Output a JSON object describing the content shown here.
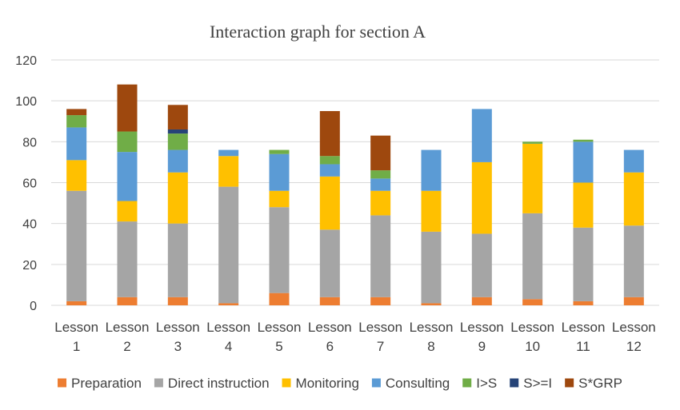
{
  "chart_data": {
    "type": "bar",
    "stacked": true,
    "title": "Interaction graph for section A",
    "xlabel": "",
    "ylabel": "",
    "ylim": [
      0,
      120
    ],
    "yticks": [
      0,
      20,
      40,
      60,
      80,
      100,
      120
    ],
    "grid": true,
    "legend_position": "bottom",
    "categories": [
      [
        "Lesson",
        "1"
      ],
      [
        "Lesson",
        "2"
      ],
      [
        "Lesson",
        "3"
      ],
      [
        "Lesson",
        "4"
      ],
      [
        "Lesson",
        "5"
      ],
      [
        "Lesson",
        "6"
      ],
      [
        "Lesson",
        "7"
      ],
      [
        "Lesson",
        "8"
      ],
      [
        "Lesson",
        "9"
      ],
      [
        "Lesson",
        "10"
      ],
      [
        "Lesson",
        "11"
      ],
      [
        "Lesson",
        "12"
      ]
    ],
    "series": [
      {
        "name": "Preparation",
        "color": "#ED7D31",
        "values": [
          2,
          4,
          4,
          1,
          6,
          4,
          4,
          1,
          4,
          3,
          2,
          4
        ]
      },
      {
        "name": "Direct instruction",
        "color": "#A5A5A5",
        "values": [
          54,
          37,
          36,
          57,
          42,
          33,
          40,
          35,
          31,
          42,
          36,
          35
        ]
      },
      {
        "name": "Monitoring",
        "color": "#FFC000",
        "values": [
          15,
          10,
          25,
          15,
          8,
          26,
          12,
          20,
          35,
          34,
          22,
          26
        ]
      },
      {
        "name": "Consulting",
        "color": "#5B9BD5",
        "values": [
          16,
          24,
          11,
          3,
          18,
          6,
          6,
          20,
          26,
          0,
          20,
          11
        ]
      },
      {
        "name": "I>S",
        "color": "#70AD47",
        "values": [
          6,
          10,
          8,
          0,
          2,
          4,
          4,
          0,
          0,
          1,
          1,
          0
        ]
      },
      {
        "name": "S>=I",
        "color": "#264478",
        "values": [
          0,
          0,
          2,
          0,
          0,
          0,
          0,
          0,
          0,
          0,
          0,
          0
        ]
      },
      {
        "name": "S*GRP",
        "color": "#9E480E",
        "values": [
          3,
          23,
          12,
          0,
          0,
          22,
          17,
          0,
          0,
          0,
          0,
          0
        ]
      }
    ]
  }
}
